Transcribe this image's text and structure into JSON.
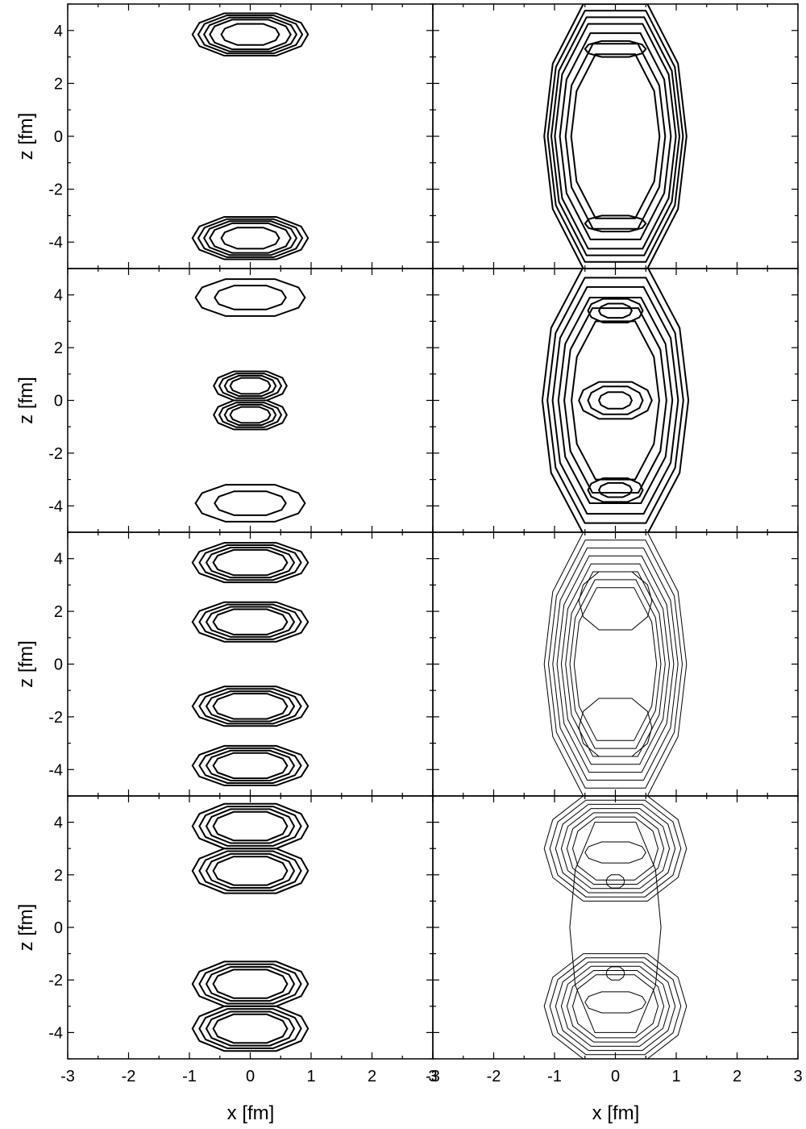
{
  "chart_data": {
    "type": "contour",
    "grid": {
      "rows": 4,
      "cols": 2
    },
    "xlabel": "x [fm]",
    "ylabel": "z [fm]",
    "xlim": [
      -3,
      3
    ],
    "ylim": [
      -5,
      5
    ],
    "x_ticks": [
      -3,
      -2,
      -1,
      0,
      1,
      2,
      3
    ],
    "y_ticks": [
      -4,
      -2,
      0,
      2,
      4
    ],
    "x_tick_labels": [
      "-3",
      "-2",
      "-1",
      "0",
      "1",
      "2",
      "3"
    ],
    "y_tick_labels": [
      "-4",
      "-2",
      "0",
      "2",
      "4"
    ],
    "panels": [
      {
        "row": 0,
        "col": 0,
        "line": "heavy",
        "blobs": [
          {
            "cx": 0,
            "cz": 3.85,
            "hw": 0.95,
            "hh": 0.8,
            "shape": "oct",
            "levels": [
              1,
              0.9,
              0.8,
              0.7,
              0.5
            ]
          },
          {
            "cx": 0,
            "cz": -3.85,
            "hw": 0.95,
            "hh": 0.8,
            "shape": "oct",
            "levels": [
              1,
              0.9,
              0.8,
              0.7,
              0.5
            ]
          }
        ]
      },
      {
        "row": 0,
        "col": 1,
        "line": "heavy",
        "blobs": [
          {
            "cx": 0,
            "cz": 0,
            "hw": 1.17,
            "hh": 5.0,
            "shape": "oct",
            "levels": [
              1,
              0.95,
              0.9,
              0.85,
              0.78,
              0.7,
              0.62
            ]
          },
          {
            "cx": 0,
            "cz": 3.3,
            "hw": 0.5,
            "hh": 0.3,
            "shape": "oct",
            "levels": [
              1
            ]
          },
          {
            "cx": 0,
            "cz": -3.3,
            "hw": 0.5,
            "hh": 0.3,
            "shape": "oct",
            "levels": [
              1
            ]
          }
        ]
      },
      {
        "row": 1,
        "col": 0,
        "line": "heavy",
        "blobs": [
          {
            "cx": 0,
            "cz": 3.9,
            "hw": 0.9,
            "hh": 0.7,
            "shape": "oct",
            "levels": [
              1,
              0.65
            ]
          },
          {
            "cx": 0,
            "cz": -3.9,
            "hw": 0.9,
            "hh": 0.7,
            "shape": "oct",
            "levels": [
              1,
              0.65
            ]
          },
          {
            "cx": 0,
            "cz": 0.55,
            "hw": 0.6,
            "hh": 0.55,
            "shape": "oct",
            "levels": [
              1,
              0.85,
              0.7,
              0.55
            ]
          },
          {
            "cx": 0,
            "cz": -0.55,
            "hw": 0.6,
            "hh": 0.55,
            "shape": "oct",
            "levels": [
              1,
              0.85,
              0.7,
              0.55
            ]
          }
        ]
      },
      {
        "row": 1,
        "col": 1,
        "line": "heavy",
        "blobs": [
          {
            "cx": 0,
            "cz": 0,
            "hw": 1.2,
            "hh": 5.0,
            "shape": "oct",
            "levels": [
              1,
              0.93,
              0.86,
              0.78,
              0.7,
              0.6
            ]
          },
          {
            "cx": 0,
            "cz": 0,
            "hw": 0.6,
            "hh": 0.7,
            "shape": "oct",
            "levels": [
              1,
              0.75,
              0.45
            ]
          },
          {
            "cx": 0,
            "cz": 3.4,
            "hw": 0.45,
            "hh": 0.45,
            "shape": "oct",
            "levels": [
              1,
              0.6
            ]
          },
          {
            "cx": 0,
            "cz": -3.4,
            "hw": 0.45,
            "hh": 0.45,
            "shape": "oct",
            "levels": [
              1,
              0.6
            ]
          }
        ]
      },
      {
        "row": 2,
        "col": 0,
        "line": "heavy",
        "blobs": [
          {
            "cx": 0,
            "cz": 3.85,
            "hw": 0.95,
            "hh": 0.75,
            "shape": "oct",
            "levels": [
              1,
              0.88,
              0.76,
              0.64
            ]
          },
          {
            "cx": 0,
            "cz": 1.6,
            "hw": 0.95,
            "hh": 0.75,
            "shape": "oct",
            "levels": [
              1,
              0.88,
              0.76,
              0.64
            ]
          },
          {
            "cx": 0,
            "cz": -1.6,
            "hw": 0.95,
            "hh": 0.75,
            "shape": "oct",
            "levels": [
              1,
              0.88,
              0.76,
              0.64
            ]
          },
          {
            "cx": 0,
            "cz": -3.85,
            "hw": 0.95,
            "hh": 0.75,
            "shape": "oct",
            "levels": [
              1,
              0.88,
              0.76,
              0.64
            ]
          }
        ]
      },
      {
        "row": 2,
        "col": 1,
        "line": "thin",
        "blobs": [
          {
            "cx": 0,
            "cz": 0,
            "hw": 1.17,
            "hh": 5.0,
            "shape": "oct",
            "levels": [
              1,
              0.94,
              0.88,
              0.82,
              0.76,
              0.7,
              0.64,
              0.58
            ]
          },
          {
            "cx": 0,
            "cz": 2.4,
            "hw": 0.6,
            "hh": 1.1,
            "shape": "oct",
            "levels": [
              1
            ]
          },
          {
            "cx": 0,
            "cz": -2.4,
            "hw": 0.6,
            "hh": 1.1,
            "shape": "oct",
            "levels": [
              1
            ]
          }
        ]
      },
      {
        "row": 3,
        "col": 0,
        "line": "heavy",
        "blobs": [
          {
            "cx": 0,
            "cz": 3.85,
            "hw": 0.95,
            "hh": 0.85,
            "shape": "oct",
            "levels": [
              1,
              0.88,
              0.76,
              0.64
            ]
          },
          {
            "cx": 0,
            "cz": 2.15,
            "hw": 0.95,
            "hh": 0.85,
            "shape": "oct",
            "levels": [
              1,
              0.88,
              0.76,
              0.64
            ]
          },
          {
            "cx": 0,
            "cz": -2.15,
            "hw": 0.95,
            "hh": 0.85,
            "shape": "oct",
            "levels": [
              1,
              0.88,
              0.76,
              0.64
            ]
          },
          {
            "cx": 0,
            "cz": -3.85,
            "hw": 0.95,
            "hh": 0.85,
            "shape": "oct",
            "levels": [
              1,
              0.88,
              0.76,
              0.64
            ]
          }
        ]
      },
      {
        "row": 3,
        "col": 1,
        "line": "thin",
        "blobs": [
          {
            "cx": 0,
            "cz": 3.0,
            "hw": 1.17,
            "hh": 2.0,
            "shape": "oct",
            "levels": [
              1,
              0.92,
              0.84,
              0.76,
              0.68,
              0.6
            ]
          },
          {
            "cx": 0,
            "cz": -3.0,
            "hw": 1.17,
            "hh": 2.0,
            "shape": "oct",
            "levels": [
              1,
              0.92,
              0.84,
              0.76,
              0.68,
              0.6
            ]
          },
          {
            "cx": 0,
            "cz": 0,
            "hw": 0.75,
            "hh": 4.0,
            "shape": "oct",
            "levels": [
              1
            ]
          },
          {
            "cx": 0,
            "cz": 2.85,
            "hw": 0.5,
            "hh": 0.4,
            "shape": "oct",
            "levels": [
              1
            ]
          },
          {
            "cx": 0,
            "cz": -2.85,
            "hw": 0.5,
            "hh": 0.4,
            "shape": "oct",
            "levels": [
              1
            ]
          },
          {
            "cx": 0,
            "cz": 1.75,
            "hw": 0.15,
            "hh": 0.25,
            "shape": "oct",
            "levels": [
              1
            ]
          },
          {
            "cx": 0,
            "cz": -1.75,
            "hw": 0.15,
            "hh": 0.25,
            "shape": "oct",
            "levels": [
              1
            ]
          }
        ]
      }
    ]
  }
}
